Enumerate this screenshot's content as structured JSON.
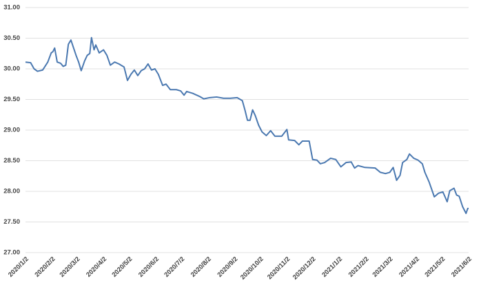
{
  "chart_data": {
    "type": "line",
    "x": [
      "2020/1/2",
      "2020/1/8",
      "2020/1/12",
      "2020/1/16",
      "2020/1/22",
      "2020/1/28",
      "2020/2/1",
      "2020/2/3",
      "2020/2/5",
      "2020/2/8",
      "2020/2/12",
      "2020/2/15",
      "2020/2/18",
      "2020/2/21",
      "2020/2/24",
      "2020/3/1",
      "2020/3/4",
      "2020/3/7",
      "2020/3/11",
      "2020/3/14",
      "2020/3/17",
      "2020/3/19",
      "2020/3/22",
      "2020/3/24",
      "2020/3/28",
      "2020/4/2",
      "2020/4/6",
      "2020/4/10",
      "2020/4/15",
      "2020/4/20",
      "2020/4/26",
      "2020/4/30",
      "2020/5/4",
      "2020/5/8",
      "2020/5/12",
      "2020/5/16",
      "2020/5/20",
      "2020/5/24",
      "2020/5/28",
      "2020/6/1",
      "2020/6/5",
      "2020/6/10",
      "2020/6/14",
      "2020/6/19",
      "2020/6/26",
      "2020/7/1",
      "2020/7/5",
      "2020/7/8",
      "2020/7/15",
      "2020/7/23",
      "2020/7/28",
      "2020/8/4",
      "2020/8/12",
      "2020/8/20",
      "2020/8/28",
      "2020/9/5",
      "2020/9/11",
      "2020/9/14",
      "2020/9/17",
      "2020/9/20",
      "2020/9/23",
      "2020/9/26",
      "2020/9/30",
      "2020/10/4",
      "2020/10/9",
      "2020/10/14",
      "2020/10/19",
      "2020/10/27",
      "2020/11/2",
      "2020/11/4",
      "2020/11/11",
      "2020/11/16",
      "2020/11/20",
      "2020/11/28",
      "2020/12/2",
      "2020/12/7",
      "2020/12/11",
      "2020/12/16",
      "2020/12/23",
      "2020/12/29",
      "2021/1/4",
      "2021/1/10",
      "2021/1/16",
      "2021/1/20",
      "2021/1/24",
      "2021/2/1",
      "2021/2/13",
      "2021/2/19",
      "2021/2/25",
      "2021/3/2",
      "2021/3/6",
      "2021/3/10",
      "2021/3/14",
      "2021/3/17",
      "2021/3/22",
      "2021/3/25",
      "2021/3/30",
      "2021/4/4",
      "2021/4/9",
      "2021/4/12",
      "2021/4/17",
      "2021/4/23",
      "2021/4/28",
      "2021/5/3",
      "2021/5/8",
      "2021/5/11",
      "2021/5/16",
      "2021/5/19",
      "2021/5/22",
      "2021/5/26",
      "2021/5/30",
      "2021/6/1",
      "2021/6/2"
    ],
    "series": [
      {
        "color": "#4a78b0",
        "values": [
          30.11,
          30.1,
          30.0,
          29.96,
          29.98,
          30.11,
          30.26,
          30.28,
          30.34,
          30.11,
          30.09,
          30.04,
          30.06,
          30.4,
          30.47,
          30.22,
          30.11,
          29.97,
          30.13,
          30.22,
          30.25,
          30.51,
          30.31,
          30.39,
          30.26,
          30.31,
          30.22,
          30.06,
          30.11,
          30.08,
          30.03,
          29.81,
          29.91,
          29.98,
          29.89,
          29.97,
          30.0,
          30.08,
          29.98,
          30.0,
          29.91,
          29.73,
          29.75,
          29.66,
          29.66,
          29.64,
          29.57,
          29.63,
          29.6,
          29.55,
          29.51,
          29.53,
          29.54,
          29.52,
          29.52,
          29.53,
          29.48,
          29.33,
          29.16,
          29.16,
          29.33,
          29.24,
          29.08,
          28.97,
          28.91,
          28.99,
          28.9,
          28.9,
          29.01,
          28.84,
          28.83,
          28.76,
          28.82,
          28.82,
          28.52,
          28.51,
          28.45,
          28.47,
          28.54,
          28.52,
          28.4,
          28.47,
          28.48,
          28.38,
          28.42,
          28.39,
          28.38,
          28.31,
          28.29,
          28.31,
          28.39,
          28.18,
          28.26,
          28.47,
          28.52,
          28.61,
          28.54,
          28.51,
          28.45,
          28.31,
          28.15,
          27.91,
          27.97,
          27.99,
          27.83,
          28.01,
          28.05,
          27.94,
          27.92,
          27.75,
          27.64,
          27.72,
          27.72
        ]
      }
    ],
    "xticks": [
      "2020/1/2",
      "2020/2/2",
      "2020/3/2",
      "2020/4/2",
      "2020/5/2",
      "2020/6/2",
      "2020/7/2",
      "2020/8/2",
      "2020/9/2",
      "2020/10/2",
      "2020/11/2",
      "2020/12/2",
      "2021/1/2",
      "2021/2/2",
      "2021/3/2",
      "2021/4/2",
      "2021/5/2",
      "2021/6/2"
    ],
    "ylim": [
      27,
      31
    ],
    "yticks": [
      {
        "value": 27,
        "label": "27.00"
      },
      {
        "value": 27.5,
        "label": "27.50"
      },
      {
        "value": 28,
        "label": "28.00"
      },
      {
        "value": 28.5,
        "label": "28.50"
      },
      {
        "value": 29,
        "label": "29.00"
      },
      {
        "value": 29.5,
        "label": "29.50"
      },
      {
        "value": 30,
        "label": "30.00"
      },
      {
        "value": 30.5,
        "label": "30.50"
      },
      {
        "value": 31,
        "label": "31.00"
      }
    ],
    "grid": true
  }
}
